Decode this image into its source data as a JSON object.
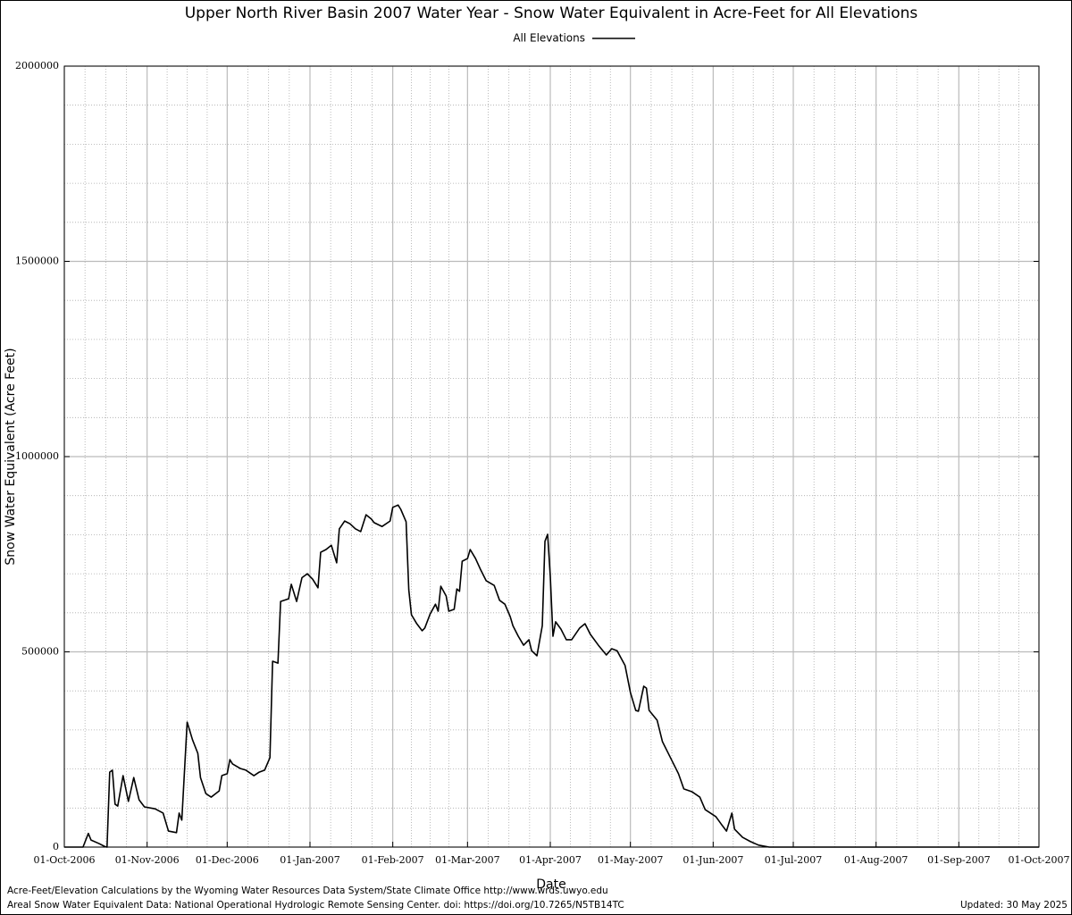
{
  "chart_data": {
    "type": "line",
    "title": "Upper North River Basin 2007 Water Year - Snow Water Equivalent in Acre-Feet for All Elevations",
    "x_label": "Date",
    "y_label": "Snow Water Equivalent (Acre Feet)",
    "x": [
      "2006-10-01",
      "2006-10-08",
      "2006-10-10",
      "2006-10-11",
      "2006-10-14",
      "2006-10-16",
      "2006-10-17",
      "2006-10-18",
      "2006-10-19",
      "2006-10-20",
      "2006-10-21",
      "2006-10-23",
      "2006-10-25",
      "2006-10-27",
      "2006-10-29",
      "2006-10-31",
      "2006-11-04",
      "2006-11-07",
      "2006-11-09",
      "2006-11-12",
      "2006-11-13",
      "2006-11-14",
      "2006-11-16",
      "2006-11-18",
      "2006-11-20",
      "2006-11-21",
      "2006-11-23",
      "2006-11-25",
      "2006-11-28",
      "2006-11-29",
      "2006-12-01",
      "2006-12-02",
      "2006-12-03",
      "2006-12-06",
      "2006-12-08",
      "2006-12-11",
      "2006-12-13",
      "2006-12-15",
      "2006-12-17",
      "2006-12-18",
      "2006-12-20",
      "2006-12-21",
      "2006-12-24",
      "2006-12-25",
      "2006-12-27",
      "2006-12-29",
      "2006-12-31",
      "2007-01-02",
      "2007-01-04",
      "2007-01-05",
      "2007-01-07",
      "2007-01-09",
      "2007-01-11",
      "2007-01-12",
      "2007-01-14",
      "2007-01-16",
      "2007-01-18",
      "2007-01-20",
      "2007-01-22",
      "2007-01-24",
      "2007-01-25",
      "2007-01-28",
      "2007-01-31",
      "2007-02-01",
      "2007-02-03",
      "2007-02-04",
      "2007-02-06",
      "2007-02-07",
      "2007-02-08",
      "2007-02-10",
      "2007-02-12",
      "2007-02-13",
      "2007-02-15",
      "2007-02-17",
      "2007-02-18",
      "2007-02-19",
      "2007-02-21",
      "2007-02-22",
      "2007-02-24",
      "2007-02-25",
      "2007-02-26",
      "2007-02-27",
      "2007-03-01",
      "2007-03-02",
      "2007-03-04",
      "2007-03-06",
      "2007-03-08",
      "2007-03-11",
      "2007-03-13",
      "2007-03-15",
      "2007-03-17",
      "2007-03-18",
      "2007-03-20",
      "2007-03-22",
      "2007-03-24",
      "2007-03-25",
      "2007-03-27",
      "2007-03-29",
      "2007-03-30",
      "2007-03-31",
      "2007-04-01",
      "2007-04-02",
      "2007-04-03",
      "2007-04-05",
      "2007-04-07",
      "2007-04-09",
      "2007-04-12",
      "2007-04-14",
      "2007-04-16",
      "2007-04-19",
      "2007-04-22",
      "2007-04-24",
      "2007-04-26",
      "2007-04-29",
      "2007-05-01",
      "2007-05-03",
      "2007-05-04",
      "2007-05-06",
      "2007-05-07",
      "2007-05-08",
      "2007-05-11",
      "2007-05-13",
      "2007-05-16",
      "2007-05-19",
      "2007-05-21",
      "2007-05-24",
      "2007-05-27",
      "2007-05-29",
      "2007-06-02",
      "2007-06-04",
      "2007-06-06",
      "2007-06-08",
      "2007-06-09",
      "2007-06-12",
      "2007-06-15",
      "2007-06-18",
      "2007-06-22",
      "2007-10-01"
    ],
    "series": [
      {
        "name": "All Elevations",
        "color": "#000000",
        "values": [
          0,
          0,
          35000,
          18000,
          9000,
          2000,
          0,
          192000,
          197000,
          110000,
          105000,
          183000,
          117000,
          178000,
          121000,
          103000,
          98000,
          87000,
          41000,
          37000,
          87000,
          69000,
          320000,
          275000,
          240000,
          178000,
          137000,
          128000,
          144000,
          183000,
          188000,
          224000,
          213000,
          201000,
          197000,
          183000,
          192000,
          197000,
          229000,
          476000,
          471000,
          629000,
          636000,
          673000,
          629000,
          690000,
          700000,
          686000,
          664000,
          755000,
          762000,
          773000,
          728000,
          815000,
          835000,
          828000,
          815000,
          808000,
          851000,
          840000,
          831000,
          821000,
          835000,
          870000,
          876000,
          865000,
          833000,
          659000,
          595000,
          572000,
          554000,
          561000,
          597000,
          622000,
          604000,
          668000,
          643000,
          604000,
          609000,
          661000,
          655000,
          732000,
          739000,
          762000,
          739000,
          709000,
          682000,
          670000,
          632000,
          622000,
          590000,
          567000,
          540000,
          517000,
          531000,
          503000,
          490000,
          567000,
          783000,
          801000,
          693000,
          540000,
          577000,
          558000,
          531000,
          531000,
          561000,
          572000,
          545000,
          517000,
          492000,
          508000,
          503000,
          465000,
          396000,
          350000,
          348000,
          412000,
          407000,
          350000,
          325000,
          270000,
          229000,
          188000,
          149000,
          142000,
          128000,
          96000,
          78000,
          59000,
          41000,
          87000,
          46000,
          25000,
          14000,
          5000,
          0,
          0
        ]
      }
    ],
    "xlim": [
      "2006-10-01",
      "2007-10-01"
    ],
    "xticks": [
      {
        "value": "2006-10-01",
        "label": "01-Oct-2006"
      },
      {
        "value": "2006-11-01",
        "label": "01-Nov-2006"
      },
      {
        "value": "2006-12-01",
        "label": "01-Dec-2006"
      },
      {
        "value": "2007-01-01",
        "label": "01-Jan-2007"
      },
      {
        "value": "2007-02-01",
        "label": "01-Feb-2007"
      },
      {
        "value": "2007-03-01",
        "label": "01-Mar-2007"
      },
      {
        "value": "2007-04-01",
        "label": "01-Apr-2007"
      },
      {
        "value": "2007-05-01",
        "label": "01-May-2007"
      },
      {
        "value": "2007-06-01",
        "label": "01-Jun-2007"
      },
      {
        "value": "2007-07-01",
        "label": "01-Jul-2007"
      },
      {
        "value": "2007-08-01",
        "label": "01-Aug-2007"
      },
      {
        "value": "2007-09-01",
        "label": "01-Sep-2007"
      },
      {
        "value": "2007-10-01",
        "label": "01-Oct-2007"
      }
    ],
    "ylim": [
      0,
      2000000
    ],
    "yticks": [
      0,
      500000,
      1000000,
      1500000,
      2000000
    ],
    "grid": true,
    "legend": "top",
    "footer": [
      "Acre-Feet/Elevation Calculations by the Wyoming Water Resources Data System/State Climate Office http://www.wrds.uwyo.edu",
      "Areal Snow Water Equivalent Data: National Operational Hydrologic Remote Sensing Center. doi: https://doi.org/10.7265/N5TB14TC"
    ],
    "updated": "Updated: 30 May 2025"
  }
}
